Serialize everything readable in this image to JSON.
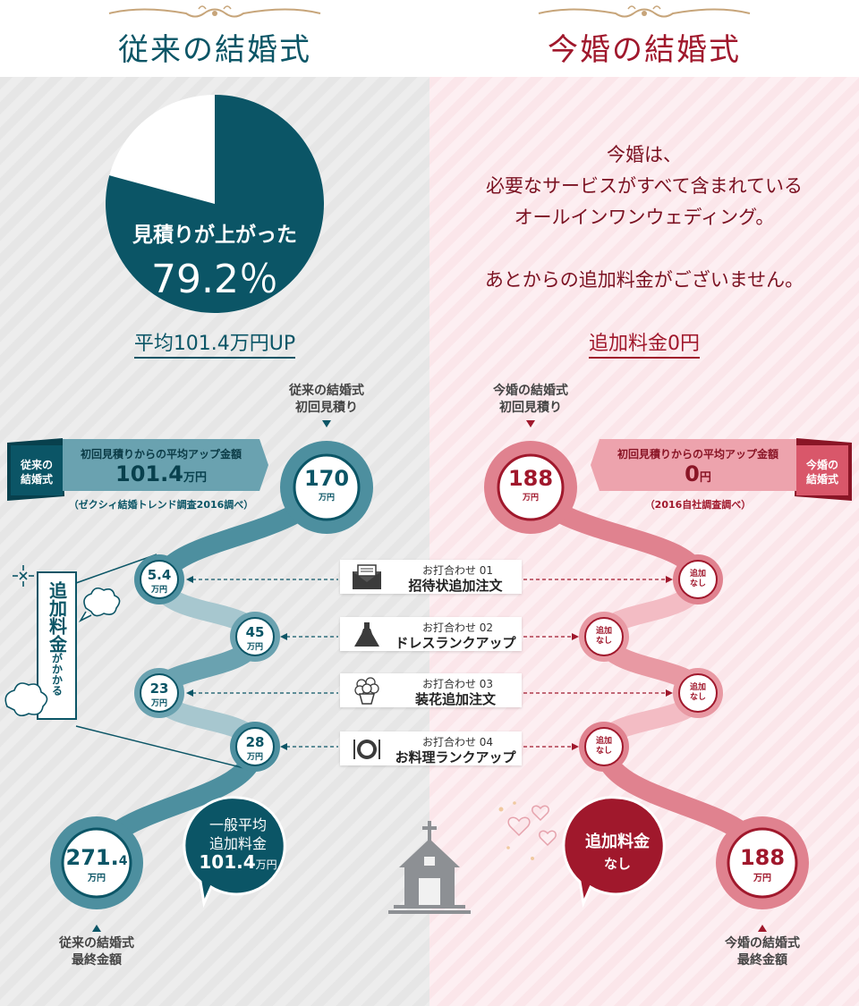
{
  "header": {
    "left_title": "従来の結婚式",
    "right_title": "今婚の結婚式",
    "ornament_color": "#c7a57a"
  },
  "left": {
    "pie": {
      "label": "見積りが上がった",
      "percent_text": "79.2％",
      "percent_value": 79.2,
      "color": "#0b5566"
    },
    "avg_up_label": "平均101.4万円UP",
    "initial_label_line1": "従来の結婚式",
    "initial_label_line2": "初回見積り",
    "banner": {
      "tag_line1": "従来の",
      "tag_line2": "結婚式",
      "title": "初回見積りからの平均アップ金額",
      "amount": "101.4",
      "unit": "万円",
      "source": "（ゼクシィ結婚トレンド調査2016調べ）"
    },
    "start_node": {
      "value": "170",
      "unit": "万円"
    },
    "steps": [
      {
        "value": "5.4",
        "unit": "万円"
      },
      {
        "value": "45",
        "unit": "万円"
      },
      {
        "value": "23",
        "unit": "万円"
      },
      {
        "value": "28",
        "unit": "万円"
      }
    ],
    "extra_fee_main": "追加料金",
    "extra_fee_sub": "がかかる",
    "avg_bubble_line1": "一般平均",
    "avg_bubble_line2": "追加料金",
    "avg_bubble_amount": "101.4",
    "avg_bubble_unit": "万円",
    "final_node": {
      "value": "271.",
      "value_small": "4",
      "unit": "万円"
    },
    "final_label_line1": "従来の結婚式",
    "final_label_line2": "最終金額",
    "primary_color": "#0b5566",
    "path_color": "#4d8f9f"
  },
  "right": {
    "message_lines": [
      "今婚は、",
      "必要なサービスがすべて含まれている",
      "オールインワンウェディング。",
      "",
      "あとからの追加料金がございません。"
    ],
    "zero_label": "追加料金0円",
    "initial_label_line1": "今婚の結婚式",
    "initial_label_line2": "初回見積り",
    "banner": {
      "tag_line1": "今婚の",
      "tag_line2": "結婚式",
      "title": "初回見積りからの平均アップ金額",
      "amount": "0",
      "unit": "円",
      "source": "（2016自社調査調べ）"
    },
    "start_node": {
      "value": "188",
      "unit": "万円"
    },
    "steps": [
      {
        "line1": "追加",
        "line2": "なし"
      },
      {
        "line1": "追加",
        "line2": "なし"
      },
      {
        "line1": "追加",
        "line2": "なし"
      },
      {
        "line1": "追加",
        "line2": "なし"
      }
    ],
    "no_fee_bubble_line1": "追加料金",
    "no_fee_bubble_line2": "なし",
    "final_node": {
      "value": "188",
      "unit": "万円"
    },
    "final_label_line1": "今婚の結婚式",
    "final_label_line2": "最終金額",
    "primary_color": "#a0182c",
    "path_color": "#e0828f"
  },
  "meetings": [
    {
      "number": "お打合わせ 01",
      "name": "招待状追加注文",
      "icon": "envelope-icon"
    },
    {
      "number": "お打合わせ 02",
      "name": "ドレスランクアップ",
      "icon": "dress-icon"
    },
    {
      "number": "お打合わせ 03",
      "name": "装花追加注文",
      "icon": "flower-icon"
    },
    {
      "number": "お打合わせ 04",
      "name": "お料理ランクアップ",
      "icon": "dish-icon"
    }
  ]
}
